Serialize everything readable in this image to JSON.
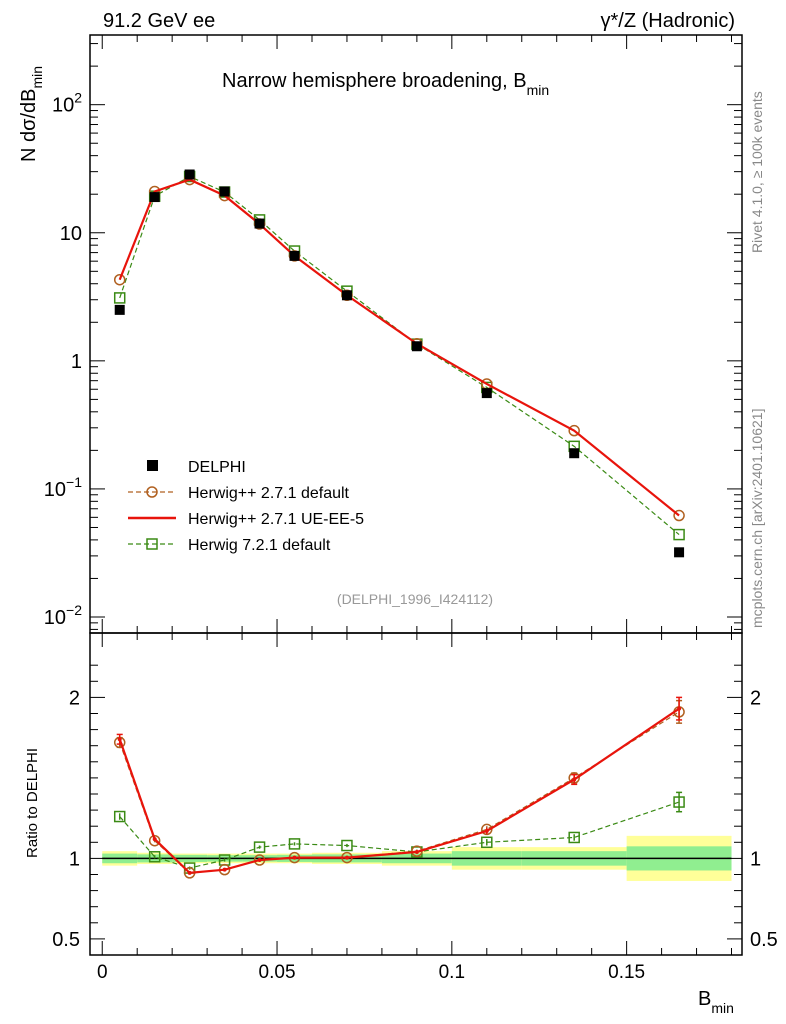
{
  "header": {
    "energy": "91.2 GeV ee",
    "process": "γ*/Z (Hadronic)"
  },
  "side_labels": {
    "rivet": "Rivet 4.1.0, ≥ 100k events",
    "mcplots": "mcplots.cern.ch [arXiv:2401.10621]"
  },
  "colors": {
    "data": "#000000",
    "herwigpp_default": "#b06020",
    "herwigpp_ueee5": "#e8140c",
    "herwig721": "#3a8a14",
    "band_inner": "#90ee90",
    "band_outer": "#ffff99"
  },
  "chart_data": {
    "type": "line",
    "title": "Narrow hemisphere broadening, B",
    "title_sub": "min",
    "ylabel_main": "N  dσ/dB",
    "ylabel_main_sub": "min",
    "ylabel_ratio": "Ratio to DELPHI",
    "xlabel": "B",
    "xlabel_sub": "min",
    "analysis_id": "(DELPHI_1996_I424112)",
    "xlim": [
      -0.0035,
      0.183
    ],
    "ylim_main": [
      0.0075,
      350
    ],
    "yscale_main": "log",
    "ylim_ratio": [
      0.4,
      2.4
    ],
    "x_ticks": [
      0,
      0.05,
      0.1,
      0.15
    ],
    "x_tick_labels": [
      "0",
      "0.05",
      "0.1",
      "0.15"
    ],
    "y_ticks_main": [
      0.01,
      0.1,
      1,
      10,
      100
    ],
    "y_tick_labels_main": [
      {
        "base": "10",
        "exp": "−2"
      },
      {
        "base": "10",
        "exp": "−1"
      },
      {
        "base": "1",
        "exp": ""
      },
      {
        "base": "10",
        "exp": ""
      },
      {
        "base": "10",
        "exp": "2"
      }
    ],
    "y_ticks_ratio": [
      0.5,
      1,
      2
    ],
    "y_tick_labels_ratio": [
      "0.5",
      "1",
      "2"
    ],
    "legend_position": "lower-left",
    "x": [
      0.005,
      0.015,
      0.025,
      0.035,
      0.045,
      0.055,
      0.07,
      0.09,
      0.11,
      0.135,
      0.165
    ],
    "bin_edges": [
      0.0,
      0.01,
      0.02,
      0.03,
      0.04,
      0.05,
      0.06,
      0.08,
      0.1,
      0.12,
      0.15,
      0.18
    ],
    "data_band": {
      "inner": [
        0.03,
        0.025,
        0.022,
        0.02,
        0.02,
        0.022,
        0.025,
        0.03,
        0.045,
        0.045,
        0.075
      ],
      "outer": [
        0.045,
        0.035,
        0.03,
        0.03,
        0.03,
        0.03,
        0.035,
        0.045,
        0.07,
        0.07,
        0.14
      ]
    },
    "series": [
      {
        "name": "DELPHI",
        "style": "data",
        "values": [
          2.5,
          19.0,
          28.5,
          21.0,
          11.8,
          6.6,
          3.25,
          1.3,
          0.56,
          0.19,
          0.032
        ],
        "ratio": [
          1,
          1,
          1,
          1,
          1,
          1,
          1,
          1,
          1,
          1,
          1
        ]
      },
      {
        "name": "Herwig++ 2.7.1 default",
        "style": "circle",
        "values": [
          4.3,
          21.0,
          26.0,
          19.5,
          11.7,
          6.6,
          3.25,
          1.36,
          0.66,
          0.285,
          0.062
        ],
        "ratio": [
          1.72,
          1.11,
          0.91,
          0.93,
          0.99,
          1.005,
          1.005,
          1.045,
          1.18,
          1.5,
          1.91
        ],
        "ratio_err": [
          0.03,
          0.01,
          0.01,
          0.01,
          0.01,
          0.01,
          0.01,
          0.01,
          0.02,
          0.03,
          0.07
        ]
      },
      {
        "name": "Herwig++ 2.7.1 UE-EE-5",
        "style": "line",
        "values": [
          4.3,
          21.0,
          26.0,
          19.5,
          11.7,
          6.6,
          3.25,
          1.36,
          0.66,
          0.285,
          0.062
        ],
        "ratio": [
          1.74,
          1.12,
          0.91,
          0.93,
          0.99,
          1.005,
          1.005,
          1.04,
          1.17,
          1.49,
          1.93
        ],
        "ratio_err": [
          0.03,
          0.01,
          0.01,
          0.01,
          0.01,
          0.01,
          0.01,
          0.01,
          0.02,
          0.03,
          0.07
        ]
      },
      {
        "name": "Herwig 7.2.1 default",
        "style": "square",
        "values": [
          3.1,
          19.3,
          27.5,
          20.8,
          12.6,
          7.2,
          3.5,
          1.35,
          0.62,
          0.215,
          0.044
        ],
        "ratio": [
          1.26,
          1.01,
          0.94,
          0.99,
          1.07,
          1.09,
          1.08,
          1.04,
          1.1,
          1.13,
          1.35
        ],
        "ratio_err": [
          0.02,
          0.01,
          0.01,
          0.01,
          0.01,
          0.01,
          0.01,
          0.01,
          0.02,
          0.02,
          0.06
        ]
      }
    ]
  }
}
